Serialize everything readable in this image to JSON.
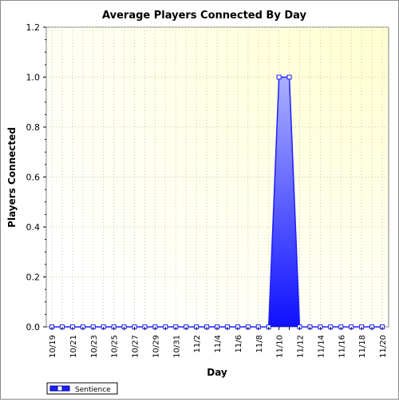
{
  "chart_data": {
    "type": "area",
    "title": "Average Players Connected By Day",
    "xlabel": "Day",
    "ylabel": "Players Connected",
    "x": [
      "10/19",
      "10/20",
      "10/21",
      "10/22",
      "10/23",
      "10/24",
      "10/25",
      "10/26",
      "10/27",
      "10/28",
      "10/29",
      "10/30",
      "10/31",
      "11/1",
      "11/2",
      "11/3",
      "11/4",
      "11/5",
      "11/6",
      "11/7",
      "11/8",
      "11/9",
      "11/10",
      "11/11",
      "11/12",
      "11/13",
      "11/14",
      "11/15",
      "11/16",
      "11/17",
      "11/18",
      "11/19",
      "11/20"
    ],
    "x_tick_labels": [
      "10/19",
      "10/21",
      "10/23",
      "10/25",
      "10/27",
      "10/29",
      "10/31",
      "11/2",
      "11/4",
      "11/6",
      "11/8",
      "11/10",
      "11/12",
      "11/14",
      "11/16",
      "11/18",
      "11/20"
    ],
    "series": [
      {
        "name": "Sentience",
        "values": [
          0,
          0,
          0,
          0,
          0,
          0,
          0,
          0,
          0,
          0,
          0,
          0,
          0,
          0,
          0,
          0,
          0,
          0,
          0,
          0,
          0,
          0,
          1,
          1,
          0,
          0,
          0,
          0,
          0,
          0,
          0,
          0,
          0
        ]
      }
    ],
    "ylim": [
      0,
      1.2
    ],
    "y_ticks": [
      "0.0",
      "0.2",
      "0.4",
      "0.6",
      "0.8",
      "1.0",
      "1.2"
    ],
    "grid": true,
    "legend": "bottom-left",
    "colors": {
      "series": "#1f1fff",
      "plot_background": "#ffffd8",
      "grid": "#c8c8a0"
    }
  }
}
